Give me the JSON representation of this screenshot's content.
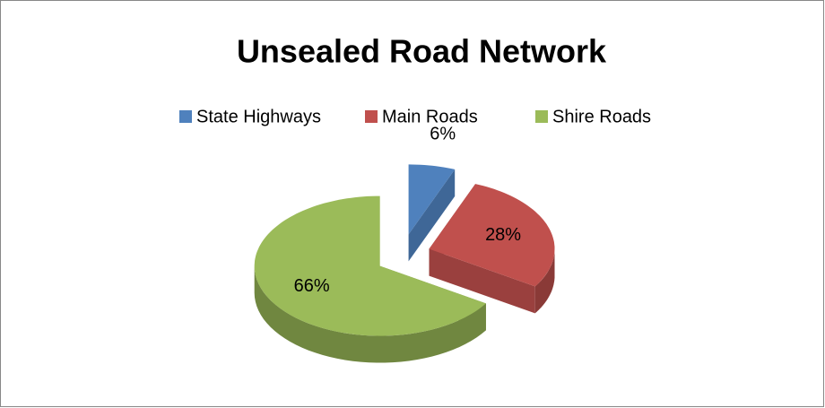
{
  "chart_data": {
    "type": "pie",
    "title": "Unsealed Road Network",
    "categories": [
      "State Highways",
      "Main Roads",
      "Shire Roads"
    ],
    "values": [
      6,
      28,
      66
    ],
    "value_labels": [
      "6%",
      "28%",
      "66%"
    ],
    "colors": [
      "#4f81bd",
      "#c0504d",
      "#9bbb59"
    ],
    "legend": "top",
    "style": "3d-exploded"
  }
}
